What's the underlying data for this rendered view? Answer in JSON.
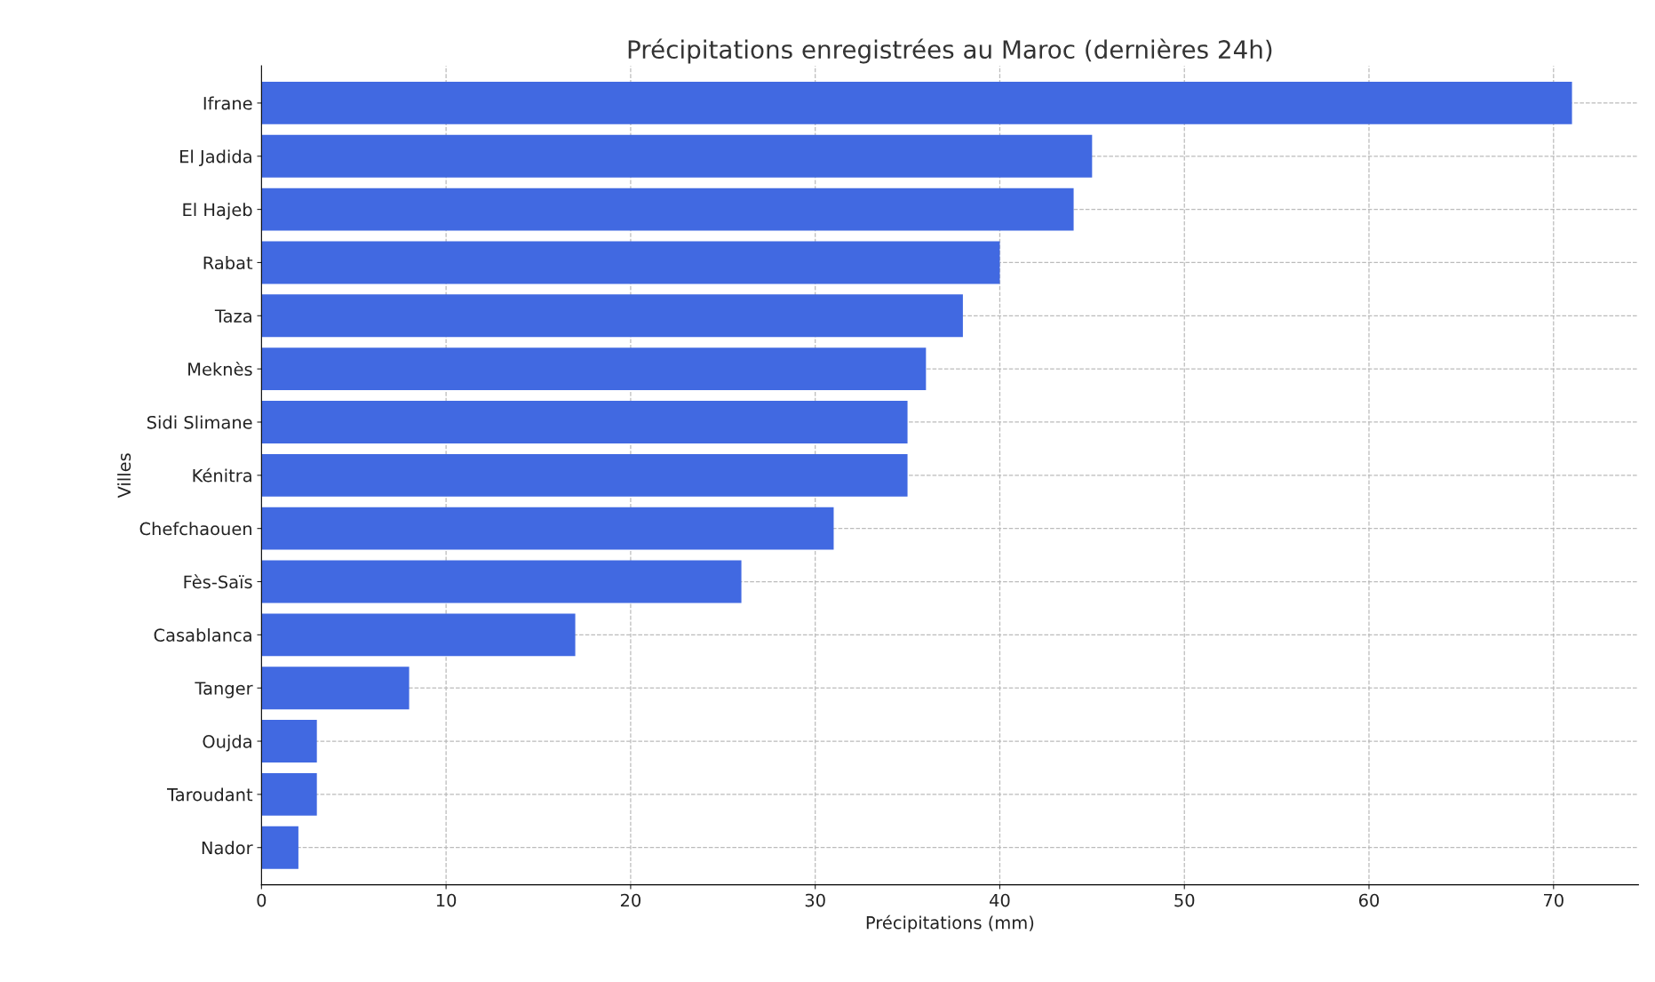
{
  "chart_data": {
    "type": "bar",
    "orientation": "horizontal",
    "title": "Précipitations enregistrées au Maroc (dernières 24h)",
    "xlabel": "Précipitations (mm)",
    "ylabel": "Villes",
    "categories": [
      "Ifrane",
      "El Jadida",
      "El Hajeb",
      "Rabat",
      "Taza",
      "Meknès",
      "Sidi Slimane",
      "Kénitra",
      "Chefchaouen",
      "Fès-Saïs",
      "Casablanca",
      "Tanger",
      "Oujda",
      "Taroudant",
      "Nador"
    ],
    "values": [
      71,
      45,
      44,
      40,
      38,
      36,
      35,
      35,
      31,
      26,
      17,
      8,
      3,
      3,
      2
    ],
    "color": "#4169e1",
    "xlim": [
      0,
      74.6
    ],
    "xticks": [
      0,
      10,
      20,
      30,
      40,
      50,
      60,
      70
    ],
    "grid": true,
    "legend": false
  }
}
